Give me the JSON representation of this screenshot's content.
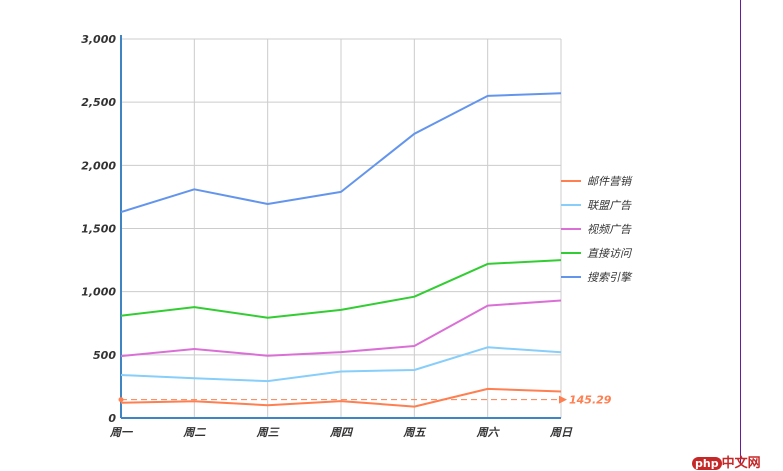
{
  "chart_data": {
    "type": "line",
    "title": "",
    "xlabel": "",
    "ylabel": "",
    "categories": [
      "周一",
      "周二",
      "周三",
      "周四",
      "周五",
      "周六",
      "周日"
    ],
    "ylim": [
      0,
      3000
    ],
    "yticks": [
      0,
      500,
      1000,
      1500,
      2000,
      2500,
      3000
    ],
    "ytick_labels": [
      "0",
      "500",
      "1,000",
      "1,500",
      "2,000",
      "2,500",
      "3,000"
    ],
    "grid": true,
    "legend_position": "right",
    "series": [
      {
        "name": "邮件营销",
        "color": "#ff7f50",
        "values": [
          120,
          132,
          101,
          134,
          90,
          230,
          210
        ]
      },
      {
        "name": "联盟广告",
        "color": "#87cefa",
        "values": [
          340,
          314,
          292,
          368,
          380,
          560,
          520
        ]
      },
      {
        "name": "视频广告",
        "color": "#da70d6",
        "values": [
          490,
          546,
          493,
          522,
          570,
          890,
          930
        ]
      },
      {
        "name": "直接访问",
        "color": "#32cd32",
        "values": [
          810,
          878,
          794,
          856,
          960,
          1220,
          1250
        ]
      },
      {
        "name": "搜索引擎",
        "color": "#6495ed",
        "values": [
          1630,
          1810,
          1694,
          1790,
          2250,
          2550,
          2570
        ]
      }
    ],
    "average_line": {
      "series": "邮件营销",
      "value": 145.29,
      "label": "145.29"
    }
  },
  "watermark": {
    "brand": "php",
    "text": "中文网"
  }
}
